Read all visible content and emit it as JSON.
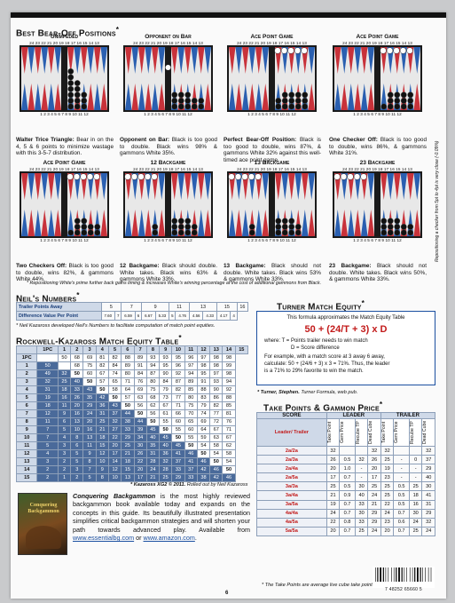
{
  "section_titles": {
    "bearoff": "Best Bear-Off Positions",
    "neil": "Neil's Numbers",
    "rk": "Rockwell-Kazaross Match Equity Table",
    "turner": "Turner Match Equity",
    "tp": "Take Points & Gammon Price"
  },
  "sup": "*",
  "board_top_nums": "24 23 22 21 20 19   18 17 16 15 14 13",
  "board_bot_nums": "1  2  3  4  5  6    7  8  9 10 11 12",
  "boards": [
    {
      "title": "Unimpeded",
      "caption_b": "Walter Trice Triangle:",
      "caption": " Bear in on the 4, 5 & 6 points to minimize wastage with this 3-5-7 distribution."
    },
    {
      "title": "Opponent on Bar",
      "caption_b": "Opponent on Bar:",
      "caption": " Black is too good to double. Black wins 98% & gammons White 35%."
    },
    {
      "title": "Ace Point Game",
      "caption_b": "Perfect Bear-Off Position:",
      "caption": " Black is too good to double, wins 87%, & gammons White 32% against this well-timed ace point game."
    },
    {
      "title": "Ace Point Game",
      "caption_b": "One Checker Off:",
      "caption": " Black is too good to double, wins 86%, & gammons White 31%."
    },
    {
      "title": "Ace Point Game",
      "caption_b": "Two Checkers Off:",
      "caption": " Black is too good to double, wins 82%, & gammons White 44%."
    },
    {
      "title": "12 Backgame",
      "caption_b": "12 Backgame:",
      "caption": " Black should double. White takes. Black wins 63% & gammons White 33%."
    },
    {
      "title": "13 Backgame",
      "caption_b": "13 Backgame:",
      "caption": " Black should not double. White takes. Black wins 53% & gammons White 33%."
    },
    {
      "title": "23 Backgame",
      "caption_b": "23 Backgame:",
      "caption": " Black should not double. White takes. Black wins 50%, & gammons White 33%."
    }
  ],
  "side_note": "Repositioning a checker from 5pt to 4pt is very close (-0.09%)",
  "bearoff_note": "* Repositioning White's prime further back gains timing & increases White's winning percentage at the cost of additional gammons from Black.",
  "neil": {
    "row1_label": "Trailer Points Away",
    "row1": [
      "5",
      "7",
      "9",
      "11",
      "13",
      "15",
      "16"
    ],
    "row2_label": "Difference Value Per Point",
    "row2": [
      "7.60",
      "7",
      "6.59",
      "6",
      "6.67",
      "5.33",
      "5",
      "4.76",
      "4.56",
      "4.33",
      "4.17",
      "4"
    ],
    "note": "* Neil Kazaross developed Neil's Numbers to facilitate computation of match point equities."
  },
  "turner": {
    "intro": "This formula approximates the Match Equity Table",
    "formula": "50 + (24/T + 3) x D",
    "where1": "where: T = Points trailer needs to win match",
    "where2": "D = Score difference",
    "ex1": "For example, with a match score at 3 away 6 away,",
    "ex2": "calculate: 50 + (24/6 + 3) x 3 = 71%. Thus, the leader",
    "ex3": "is a 71% to 29% favorite to win the match.",
    "note_b": "* Turner, Stephen.",
    "note": " Turner Formula, web pub."
  },
  "met": {
    "cols": [
      "1PC",
      "1",
      "2",
      "3",
      "4",
      "5",
      "6",
      "7",
      "8",
      "9",
      "10",
      "11",
      "12",
      "13",
      "14",
      "15"
    ],
    "rows": [
      [
        "1PC",
        "",
        "50",
        "68",
        "69",
        "81",
        "82",
        "88",
        "89",
        "93",
        "93",
        "95",
        "96",
        "97",
        "98",
        "98"
      ],
      [
        "1",
        "50",
        "",
        "68",
        "75",
        "82",
        "84",
        "89",
        "91",
        "94",
        "95",
        "96",
        "97",
        "98",
        "98",
        "99"
      ],
      [
        "2",
        "49",
        "32",
        "50",
        "60",
        "67",
        "74",
        "80",
        "84",
        "87",
        "90",
        "92",
        "94",
        "95",
        "97",
        "98"
      ],
      [
        "3",
        "32",
        "25",
        "40",
        "50",
        "57",
        "65",
        "71",
        "76",
        "80",
        "84",
        "87",
        "89",
        "91",
        "93",
        "94"
      ],
      [
        "4",
        "31",
        "18",
        "33",
        "43",
        "50",
        "58",
        "64",
        "69",
        "75",
        "79",
        "82",
        "85",
        "88",
        "90",
        "92"
      ],
      [
        "5",
        "19",
        "16",
        "26",
        "35",
        "42",
        "50",
        "57",
        "63",
        "68",
        "73",
        "77",
        "80",
        "83",
        "86",
        "88"
      ],
      [
        "6",
        "18",
        "11",
        "20",
        "29",
        "36",
        "43",
        "50",
        "56",
        "62",
        "67",
        "71",
        "75",
        "79",
        "82",
        "85"
      ],
      [
        "7",
        "12",
        "9",
        "16",
        "24",
        "31",
        "37",
        "44",
        "50",
        "56",
        "61",
        "66",
        "70",
        "74",
        "77",
        "81"
      ],
      [
        "8",
        "11",
        "6",
        "13",
        "20",
        "25",
        "32",
        "38",
        "44",
        "50",
        "55",
        "60",
        "65",
        "69",
        "72",
        "76"
      ],
      [
        "9",
        "7",
        "5",
        "10",
        "16",
        "21",
        "27",
        "33",
        "39",
        "45",
        "50",
        "55",
        "60",
        "64",
        "67",
        "71"
      ],
      [
        "10",
        "7",
        "4",
        "8",
        "13",
        "18",
        "22",
        "29",
        "34",
        "40",
        "45",
        "50",
        "55",
        "59",
        "63",
        "67"
      ],
      [
        "11",
        "5",
        "3",
        "6",
        "11",
        "15",
        "20",
        "25",
        "30",
        "35",
        "40",
        "45",
        "50",
        "54",
        "58",
        "62"
      ],
      [
        "12",
        "4",
        "3",
        "5",
        "9",
        "12",
        "17",
        "21",
        "26",
        "31",
        "36",
        "41",
        "46",
        "50",
        "54",
        "58"
      ],
      [
        "13",
        "3",
        "2",
        "5",
        "8",
        "10",
        "14",
        "18",
        "22",
        "28",
        "32",
        "37",
        "41",
        "46",
        "50",
        "54"
      ],
      [
        "14",
        "2",
        "2",
        "3",
        "7",
        "9",
        "12",
        "15",
        "20",
        "24",
        "28",
        "33",
        "37",
        "42",
        "46",
        "50"
      ],
      [
        "15",
        "2",
        "1",
        "2",
        "5",
        "8",
        "10",
        "13",
        "17",
        "21",
        "25",
        "29",
        "33",
        "38",
        "42",
        "46"
      ]
    ],
    "note_b": "* Kazaross XG2 © 2011.",
    "note": " Rolled out by Neil Kazaross"
  },
  "tp": {
    "score": "SCORE",
    "leader": "LEADER",
    "trailer": "TRAILER",
    "lt": "Leader/ Trailer",
    "sub": [
      "Take Point",
      "Gem Price",
      "Recube TP",
      "Dead Cube",
      "Take Point",
      "Gem Price",
      "Recube TP",
      "Dead Cube"
    ],
    "rows": [
      [
        "2a/2a",
        "32",
        "",
        "",
        "32",
        "32",
        "",
        "",
        "32"
      ],
      [
        "2a/3a",
        "26",
        "0.5",
        "32",
        "26",
        "25",
        "-",
        "0",
        "37"
      ],
      [
        "2a/4a",
        "20",
        "1.0",
        "-",
        "20",
        "19",
        "-",
        "-",
        "29"
      ],
      [
        "2a/5a",
        "17",
        "0.7",
        "-",
        "17",
        "23",
        "-",
        "-",
        "40"
      ],
      [
        "3a/3a",
        "25",
        "0.5",
        "30",
        "25",
        "25",
        "0.5",
        "25",
        "30"
      ],
      [
        "3a/4a",
        "21",
        "0.9",
        "40",
        "24",
        "25",
        "0.5",
        "18",
        "41"
      ],
      [
        "3a/5a",
        "19",
        "0.7",
        "33",
        "21",
        "22",
        "0.5",
        "16",
        "31"
      ],
      [
        "4a/4a",
        "24",
        "0.7",
        "30",
        "29",
        "24",
        "0.7",
        "30",
        "29"
      ],
      [
        "4a/5a",
        "22",
        "0.8",
        "33",
        "29",
        "23",
        "0.6",
        "24",
        "32"
      ],
      [
        "5a/5a",
        "20",
        "0.7",
        "25",
        "24",
        "20",
        "0.7",
        "25",
        "24"
      ]
    ],
    "note": "* The Take Points are average live cube take points."
  },
  "book": {
    "title": "Conquering Backgammon",
    "text": " is the most highly reviewed backgammon book available today and expands on the concepts in this guide. Its beautifully illustrated presentation simplifies critical backgammon strategies and will shorten your path towards advanced play. Available from ",
    "url1": "www.essentialbg.com",
    "or": " or ",
    "url2": "www.amazon.com",
    "end": ".",
    "cover": "Conquering Backgammon"
  },
  "page_num": "6",
  "barcode_num": "7  48252  65660  5"
}
